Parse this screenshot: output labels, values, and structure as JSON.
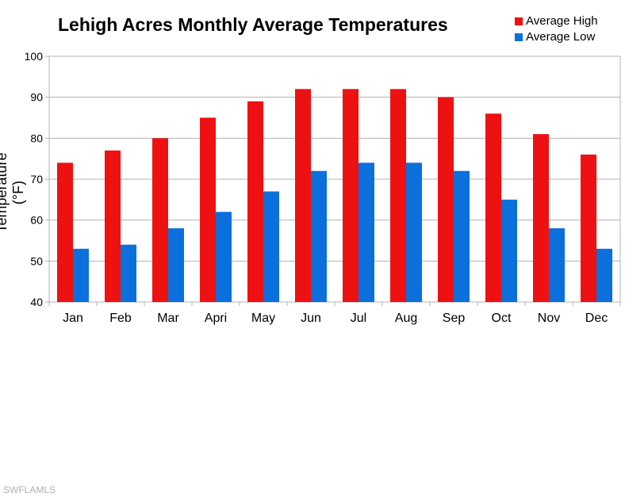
{
  "chart_data": {
    "type": "bar",
    "title": "Lehigh Acres Monthly Average Temperatures",
    "xlabel": "",
    "ylabel": "Temperature (°F)",
    "ylim": [
      40,
      100
    ],
    "yticks": [
      40,
      50,
      60,
      70,
      80,
      90,
      100
    ],
    "grid": true,
    "legend": "top-right",
    "categories": [
      "Jan",
      "Feb",
      "Mar",
      "Apri",
      "May",
      "Jun",
      "Jul",
      "Aug",
      "Sep",
      "Oct",
      "Nov",
      "Dec"
    ],
    "series": [
      {
        "name": "Average High",
        "color": "#ee1111",
        "values": [
          74,
          77,
          80,
          85,
          89,
          92,
          92,
          92,
          90,
          86,
          81,
          76
        ]
      },
      {
        "name": "Average Low",
        "color": "#0b6fdc",
        "values": [
          53,
          54,
          58,
          62,
          67,
          72,
          74,
          74,
          72,
          65,
          58,
          53
        ]
      }
    ]
  },
  "watermark": "SWFLAMLS"
}
